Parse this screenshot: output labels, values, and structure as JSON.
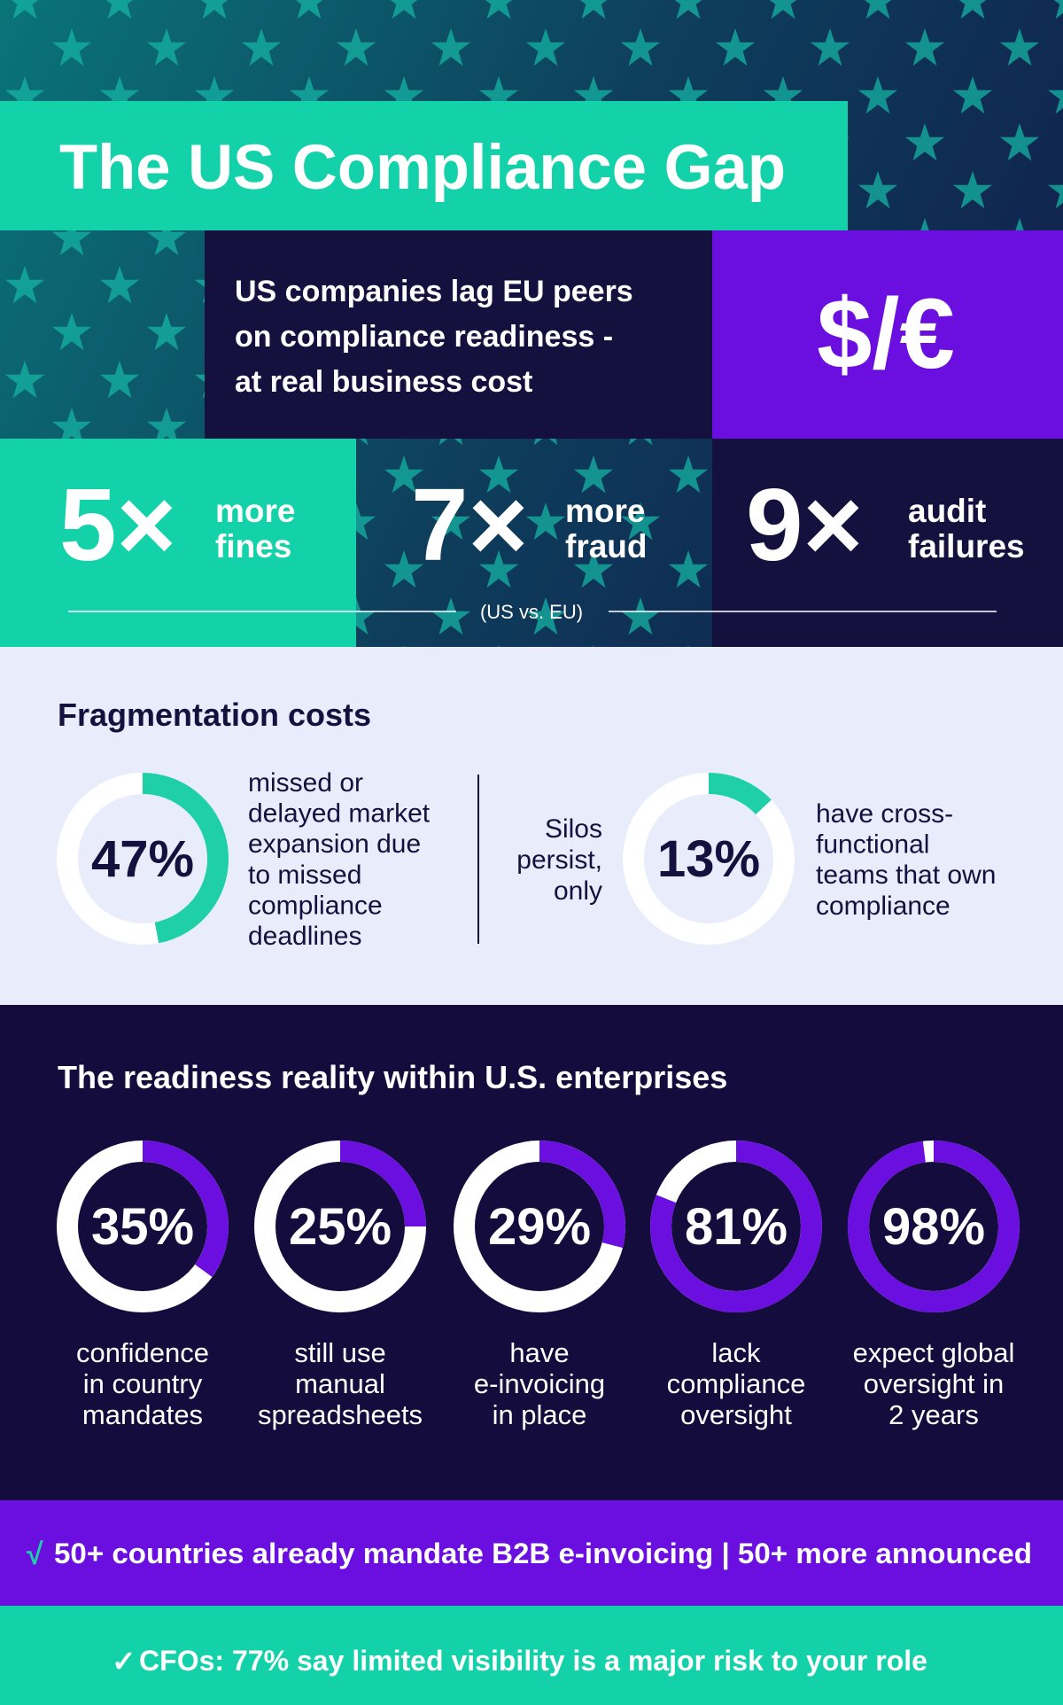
{
  "header": {
    "title": "The US Compliance Gap",
    "subtitle_lines": [
      "US companies lag EU peers",
      "on compliance readiness -",
      "at real business cost"
    ],
    "symbol": "$/€"
  },
  "stats": {
    "items": [
      {
        "figure": "5×",
        "label_lines": [
          "more",
          "fines"
        ]
      },
      {
        "figure": "7×",
        "label_lines": [
          "more",
          "fraud"
        ]
      },
      {
        "figure": "9×",
        "label_lines": [
          "audit",
          "failures"
        ]
      }
    ],
    "note": "(US vs. EU)"
  },
  "fragmentation": {
    "title": "Fragmentation costs",
    "left": {
      "value": 47,
      "label": "47%",
      "text_lines": [
        "missed or",
        "delayed market",
        "expansion due",
        "to missed",
        "compliance",
        "deadlines"
      ]
    },
    "right": {
      "lead_lines": [
        "Silos",
        "persist,",
        "only"
      ],
      "value": 13,
      "label": "13%",
      "text_lines": [
        "have cross-",
        "functional",
        "teams that own",
        "compliance"
      ]
    }
  },
  "readiness": {
    "title": "The readiness reality within U.S. enterprises",
    "items": [
      {
        "value": 35,
        "label": "35%",
        "text_lines": [
          "confidence",
          "in country",
          "mandates"
        ]
      },
      {
        "value": 25,
        "label": "25%",
        "text_lines": [
          "still use",
          "manual",
          "spreadsheets"
        ]
      },
      {
        "value": 29,
        "label": "29%",
        "text_lines": [
          "have",
          "e-invoicing",
          "in place"
        ]
      },
      {
        "value": 81,
        "label": "81%",
        "text_lines": [
          "lack",
          "compliance",
          "oversight"
        ]
      },
      {
        "value": 98,
        "label": "98%",
        "text_lines": [
          "expect global",
          "oversight in",
          "2 years"
        ]
      }
    ]
  },
  "banner": {
    "check": "√",
    "text": "50+ countries already mandate B2B e-invoicing | 50+ more announced"
  },
  "footer": {
    "check": "✓",
    "text": "CFOs: 77% say limited visibility is a major risk to your role"
  }
}
